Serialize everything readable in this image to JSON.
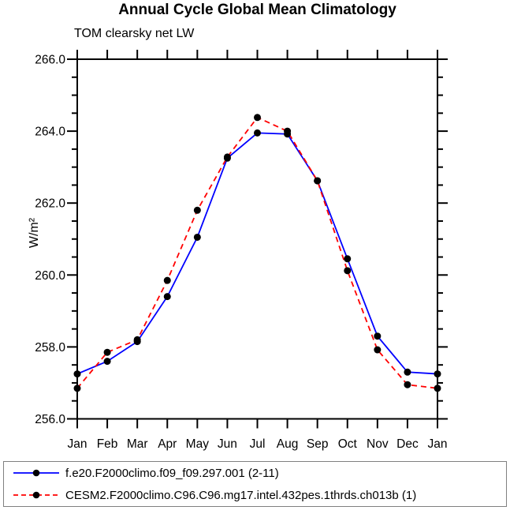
{
  "chart_data": {
    "type": "line",
    "title": "Annual Cycle Global Mean Climatology",
    "subtitle": "TOM clearsky net LW",
    "ylabel": "W/m²",
    "x_categories": [
      "Jan",
      "Feb",
      "Mar",
      "Apr",
      "May",
      "Jun",
      "Jul",
      "Aug",
      "Sep",
      "Oct",
      "Nov",
      "Dec",
      "Jan"
    ],
    "ylim": [
      256.0,
      266.0
    ],
    "y_major_step": 2.0,
    "y_minor_step": 0.5,
    "y_tick_labels": [
      "256.0",
      "258.0",
      "260.0",
      "262.0",
      "264.0",
      "266.0"
    ],
    "grid": false,
    "legend_position": "bottom-box",
    "marker": "filled-circle",
    "marker_color": "#000000",
    "axis_color": "#000000",
    "series": [
      {
        "name": "f.e20.F2000climo.f09_f09.297.001 (2-11)",
        "color": "#0000ff",
        "style": "solid",
        "values": [
          257.25,
          257.6,
          258.15,
          259.4,
          261.05,
          263.25,
          263.95,
          263.92,
          262.62,
          260.45,
          258.3,
          257.3,
          257.25
        ]
      },
      {
        "name": "CESM2.F2000climo.C96.C96.mg17.intel.432pes.1thrds.ch013b (1)",
        "color": "#ff0000",
        "style": "dashed",
        "values": [
          256.85,
          257.85,
          258.2,
          259.85,
          261.8,
          263.28,
          264.38,
          264.0,
          262.62,
          260.12,
          257.92,
          256.95,
          256.85
        ]
      }
    ]
  }
}
